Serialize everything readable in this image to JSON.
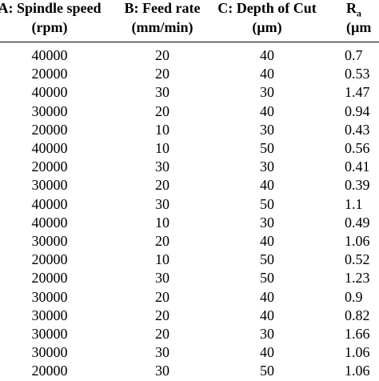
{
  "table": {
    "headers": [
      {
        "line1": "A: Spindle speed",
        "line2": "(rpm)"
      },
      {
        "line1": "B: Feed rate",
        "line2": "(mm/min)"
      },
      {
        "line1": "C: Depth of Cut",
        "line2": "(µm)"
      },
      {
        "line1_main": "R",
        "line1_sub": "a",
        "line2": "(µm"
      }
    ],
    "rows": [
      [
        "40000",
        "20",
        "40",
        "0.7"
      ],
      [
        "20000",
        "20",
        "40",
        "0.53"
      ],
      [
        "40000",
        "30",
        "30",
        "1.47"
      ],
      [
        "30000",
        "20",
        "40",
        "0.94"
      ],
      [
        "20000",
        "10",
        "30",
        "0.43"
      ],
      [
        "40000",
        "10",
        "50",
        "0.56"
      ],
      [
        "20000",
        "30",
        "30",
        "0.41"
      ],
      [
        "30000",
        "20",
        "40",
        "0.39"
      ],
      [
        "40000",
        "30",
        "50",
        "1.1"
      ],
      [
        "40000",
        "10",
        "30",
        "0.49"
      ],
      [
        "30000",
        "20",
        "40",
        "1.06"
      ],
      [
        "20000",
        "10",
        "50",
        "0.52"
      ],
      [
        "20000",
        "30",
        "50",
        "1.23"
      ],
      [
        "30000",
        "20",
        "40",
        "0.9"
      ],
      [
        "30000",
        "20",
        "40",
        "0.82"
      ],
      [
        "30000",
        "20",
        "30",
        "1.66"
      ],
      [
        "30000",
        "30",
        "40",
        "1.06"
      ],
      [
        "20000",
        "30",
        "50",
        "1.06"
      ]
    ]
  }
}
